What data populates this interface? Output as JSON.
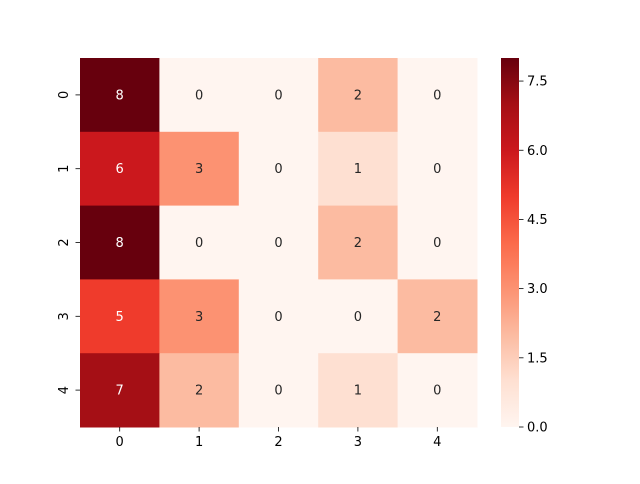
{
  "chart_data": {
    "type": "heatmap",
    "title": "",
    "xlabel": "",
    "ylabel": "",
    "x_categories": [
      "0",
      "1",
      "2",
      "3",
      "4"
    ],
    "y_categories": [
      "0",
      "1",
      "2",
      "3",
      "4"
    ],
    "values": [
      [
        8,
        0,
        0,
        2,
        0
      ],
      [
        6,
        3,
        0,
        1,
        0
      ],
      [
        8,
        0,
        0,
        2,
        0
      ],
      [
        5,
        3,
        0,
        0,
        2
      ],
      [
        7,
        2,
        0,
        1,
        0
      ]
    ],
    "annotations": true,
    "colormap": "Reds",
    "colorbar": {
      "vmin": 0,
      "vmax": 8,
      "ticks": [
        0.0,
        1.5,
        3.0,
        4.5,
        6.0,
        7.5
      ],
      "tick_labels": [
        "0.0",
        "1.5",
        "3.0",
        "4.5",
        "6.0",
        "7.5"
      ]
    },
    "grid": false,
    "legend": "colorbar-right"
  }
}
